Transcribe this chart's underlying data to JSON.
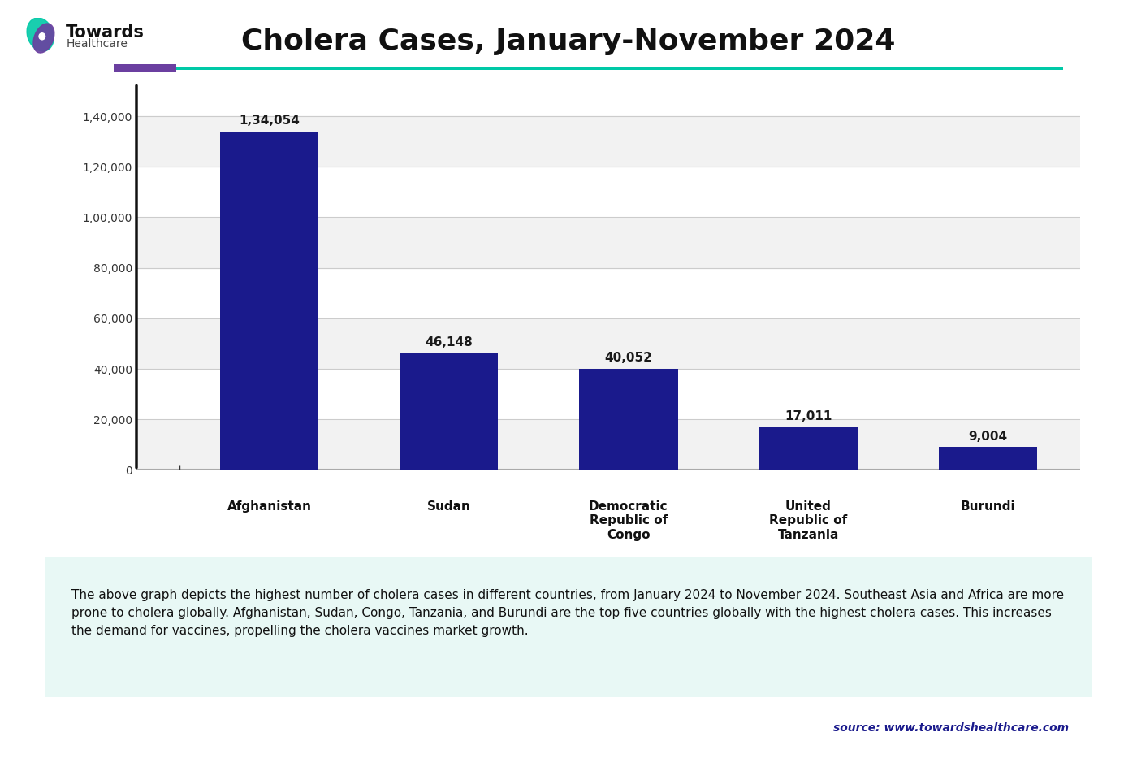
{
  "title": "Cholera Cases, January-November 2024",
  "categories": [
    "Afghanistan",
    "Sudan",
    "Democratic\nRepublic of\nCongo",
    "United\nRepublic of\nTanzania",
    "Burundi"
  ],
  "values": [
    134054,
    46148,
    40052,
    17011,
    9004
  ],
  "bar_color": "#1a1a8c",
  "bar_width": 0.55,
  "ylim": [
    0,
    150000
  ],
  "yticks": [
    0,
    20000,
    40000,
    60000,
    80000,
    100000,
    120000,
    140000
  ],
  "ytick_labels": [
    "0",
    "20,000",
    "40,000",
    "60,000",
    "80,000",
    "1,00,000",
    "1,20,000",
    "1,40,000"
  ],
  "value_labels": [
    "1,34,054",
    "46,148",
    "40,052",
    "17,011",
    "9,004"
  ],
  "description": "The above graph depicts the highest number of cholera cases in different countries, from January 2024 to November 2024. Southeast Asia and Africa are more\nprone to cholera globally. Afghanistan, Sudan, Congo, Tanzania, and Burundi are the top five countries globally with the highest cholera cases. This increases\nthe demand for vaccines, propelling the cholera vaccines market growth.",
  "source_text": "source: www.towardshealthcare.com",
  "bg_color": "#ffffff",
  "desc_bg_color": "#e8f8f5",
  "purple_color": "#6b3fa0",
  "teal_color": "#00c9a7"
}
